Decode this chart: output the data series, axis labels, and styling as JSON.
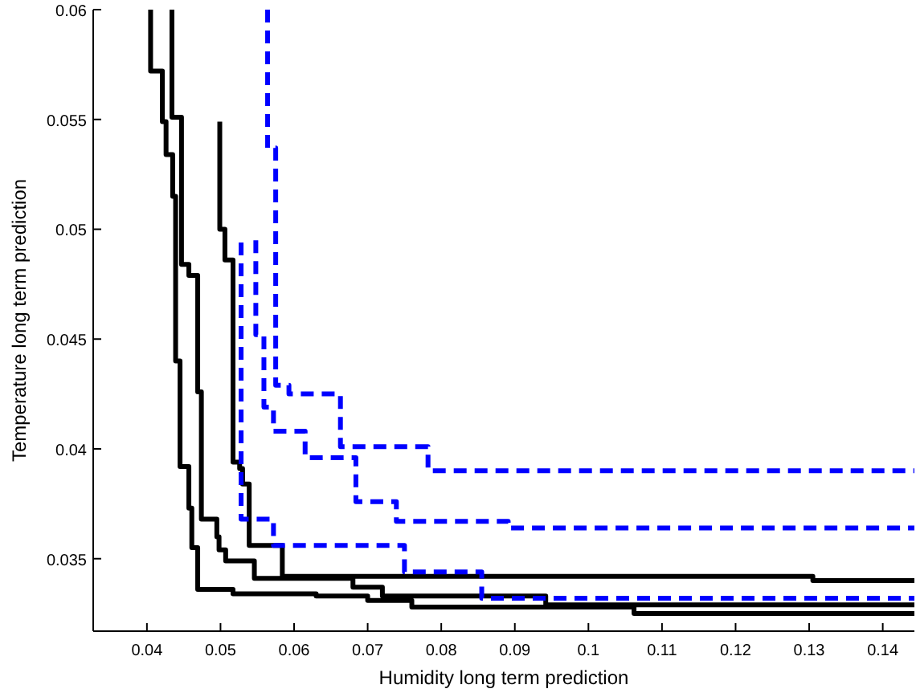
{
  "chart_data": {
    "type": "step",
    "xlabel": "Humidity long term prediction",
    "ylabel": "Temperature long term prediction",
    "xlim": [
      0.0327,
      0.1443
    ],
    "ylim": [
      0.0317,
      0.06
    ],
    "xticks": [
      0.04,
      0.05,
      0.06,
      0.07,
      0.08,
      0.09,
      0.1,
      0.11,
      0.12,
      0.13,
      0.14
    ],
    "yticks": [
      0.035,
      0.04,
      0.045,
      0.05,
      0.055,
      0.06
    ],
    "grid": false,
    "series": [
      {
        "color": "#000000",
        "line_style": "solid",
        "x": [
          0.0405,
          0.0421,
          0.0426,
          0.0435,
          0.0439,
          0.0445,
          0.0457,
          0.0461,
          0.0469,
          0.0517,
          0.063,
          0.07,
          0.076,
          0.1062,
          0.1443
        ],
        "values": [
          0.06,
          0.0572,
          0.0549,
          0.0534,
          0.0515,
          0.044,
          0.0392,
          0.0373,
          0.0355,
          0.0336,
          0.0334,
          0.0333,
          0.0331,
          0.0328,
          0.0325
        ]
      },
      {
        "color": "#000000",
        "line_style": "solid",
        "x": [
          0.0434,
          0.0447,
          0.0457,
          0.0469,
          0.0474,
          0.0495,
          0.0498,
          0.0507,
          0.0546,
          0.068,
          0.072,
          0.0942,
          0.1443
        ],
        "values": [
          0.06,
          0.0551,
          0.0484,
          0.0479,
          0.0426,
          0.0368,
          0.036,
          0.0354,
          0.0349,
          0.0341,
          0.0337,
          0.0333,
          0.0329
        ]
      },
      {
        "color": "#000000",
        "line_style": "solid",
        "x": [
          0.0499,
          0.0506,
          0.0517,
          0.0526,
          0.053,
          0.0539,
          0.0584,
          0.1305,
          0.1443
        ],
        "values": [
          0.0549,
          0.05,
          0.0486,
          0.0394,
          0.0391,
          0.0384,
          0.0356,
          0.0342,
          0.034
        ]
      },
      {
        "color": "#0000ff",
        "line_style": "dashed",
        "x": [
          0.0564,
          0.0575,
          0.0593,
          0.0663,
          0.0782,
          0.1443
        ],
        "values": [
          0.06,
          0.0537,
          0.0429,
          0.0425,
          0.0401,
          0.039
        ]
      },
      {
        "color": "#0000ff",
        "line_style": "dashed",
        "x": [
          0.0548,
          0.0559,
          0.0572,
          0.0615,
          0.0684,
          0.0739,
          0.0891,
          0.1443
        ],
        "values": [
          0.0495,
          0.0452,
          0.0419,
          0.0408,
          0.0396,
          0.0376,
          0.0367,
          0.0364
        ]
      },
      {
        "color": "#0000ff",
        "line_style": "dashed",
        "x": [
          0.0528,
          0.0572,
          0.075,
          0.0855,
          0.1443
        ],
        "values": [
          0.0494,
          0.0368,
          0.0356,
          0.0344,
          0.0332
        ]
      }
    ]
  }
}
